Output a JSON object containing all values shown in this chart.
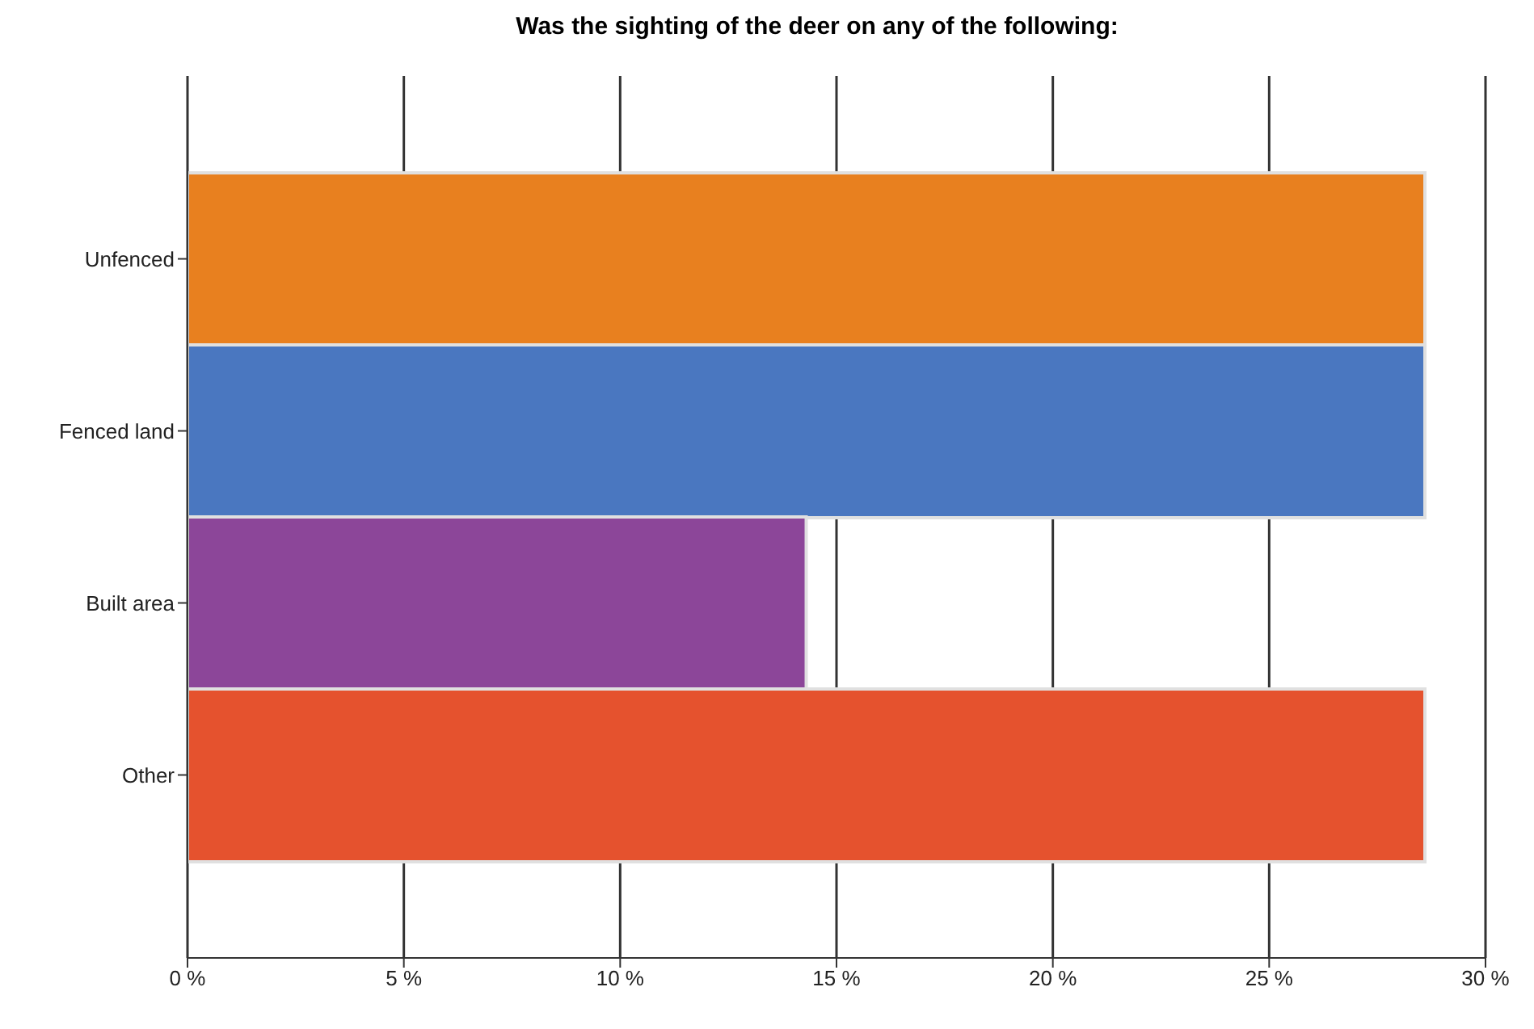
{
  "chart_data": {
    "type": "bar",
    "orientation": "horizontal",
    "title": "Was the sighting of the deer on any of the following:",
    "categories": [
      "Unfenced",
      "Fenced land",
      "Built area",
      "Other"
    ],
    "values": [
      28.6,
      28.6,
      14.3,
      28.6
    ],
    "colors": [
      "#e8801f",
      "#4a77c0",
      "#8c4699",
      "#e5522e"
    ],
    "xlim": [
      0,
      30
    ],
    "xticks": [
      {
        "value": 0,
        "label": "0 %"
      },
      {
        "value": 5,
        "label": "5 %"
      },
      {
        "value": 10,
        "label": "10 %"
      },
      {
        "value": 15,
        "label": "15 %"
      },
      {
        "value": 20,
        "label": "20 %"
      },
      {
        "value": 25,
        "label": "25 %"
      },
      {
        "value": 30,
        "label": "30 %"
      }
    ],
    "grid": "x",
    "legend": false
  }
}
